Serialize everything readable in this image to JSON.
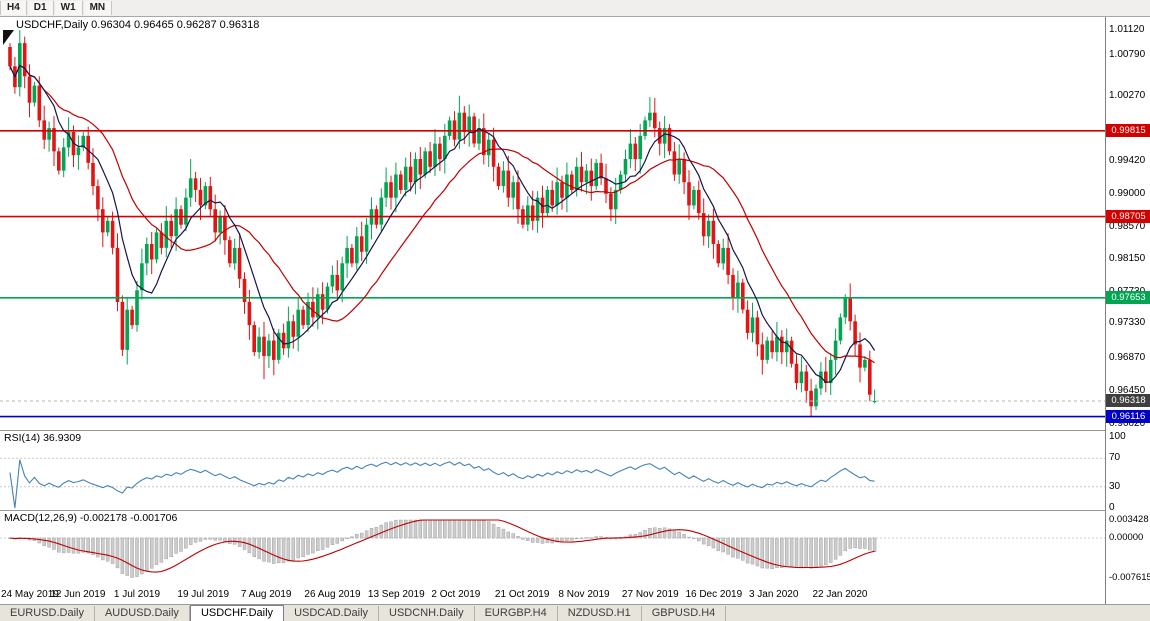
{
  "toolbar": {
    "periods": [
      "H4",
      "D1",
      "W1",
      "MN"
    ]
  },
  "chart": {
    "title": "USDCHF,Daily  0.96304 0.96465 0.96287 0.96318"
  },
  "price_axis": {
    "ticks": [
      "1.01120",
      "1.00790",
      "1.00270",
      "0.99420",
      "0.99000",
      "0.98570",
      "0.98150",
      "0.97730",
      "0.97330",
      "0.96870",
      "0.96450",
      "0.96020"
    ]
  },
  "levels": [
    {
      "label": "0.99815",
      "value": 0.99815,
      "color": "#d40000"
    },
    {
      "label": "0.98705",
      "value": 0.98705,
      "color": "#d40000"
    },
    {
      "label": "0.97653",
      "value": 0.97653,
      "color": "#00a651"
    },
    {
      "label": "0.96116",
      "value": 0.96116,
      "color": "#0000c8"
    }
  ],
  "current_price": {
    "label": "0.96318",
    "value": 0.96318,
    "badge_color": "#3f3f3f"
  },
  "rsi": {
    "label": "RSI(14) 36.9309",
    "value": 36.9309,
    "axis": [
      "100",
      "70",
      "30",
      "0"
    ],
    "line_color": "#4682b4",
    "level_lines": [
      70,
      30
    ]
  },
  "macd": {
    "label": "MACD(12,26,9) -0.002178 -0.001706",
    "axis": [
      "0.003428",
      "0.00000",
      "-0.007615"
    ],
    "hist_color": "#cccccc",
    "signal_color": "#c00000"
  },
  "date_axis": {
    "labels": [
      "24 May 2019",
      "12 Jun 2019",
      "1 Jul 2019",
      "19 Jul 2019",
      "7 Aug 2019",
      "26 Aug 2019",
      "13 Sep 2019",
      "2 Oct 2019",
      "21 Oct 2019",
      "8 Nov 2019",
      "27 Nov 2019",
      "16 Dec 2019",
      "3 Jan 2020",
      "22 Jan 2020"
    ]
  },
  "tabs": [
    {
      "label": "EURUSD.Daily",
      "active": false
    },
    {
      "label": "AUDUSD.Daily",
      "active": false
    },
    {
      "label": "USDCHF.Daily",
      "active": true
    },
    {
      "label": "USDCAD.Daily",
      "active": false
    },
    {
      "label": "USDCNH.Daily",
      "active": false
    },
    {
      "label": "EURGBP.H4",
      "active": false
    },
    {
      "label": "NZDUSD.H1",
      "active": false
    },
    {
      "label": "GBPUSD.H4",
      "active": false
    }
  ],
  "chart_data": {
    "type": "candlestick",
    "symbol": "USDCHF",
    "timeframe": "Daily",
    "current_ohlc": {
      "open": 0.96304,
      "high": 0.96465,
      "low": 0.96287,
      "close": 0.96318
    },
    "y_axis_range": [
      0.9602,
      1.0112
    ],
    "bull_color": "#00a651",
    "bear_color": "#e01515",
    "ma_colors": [
      "#15154a",
      "#c00000"
    ],
    "rsi_value": 36.9309,
    "macd_value": -0.002178,
    "macd_signal_value": -0.001706,
    "closes": [
      1.0065,
      1.0038,
      1.0095,
      1.0052,
      1.0018,
      1.004,
      0.9995,
      0.997,
      0.9985,
      0.9955,
      0.993,
      0.996,
      0.998,
      0.995,
      0.996,
      0.9975,
      0.994,
      0.991,
      0.988,
      0.985,
      0.9865,
      0.983,
      0.976,
      0.9698,
      0.975,
      0.973,
      0.9775,
      0.981,
      0.9835,
      0.9815,
      0.985,
      0.983,
      0.9865,
      0.9845,
      0.988,
      0.986,
      0.9895,
      0.992,
      0.9905,
      0.9885,
      0.991,
      0.988,
      0.985,
      0.987,
      0.984,
      0.981,
      0.983,
      0.979,
      0.976,
      0.973,
      0.9695,
      0.9715,
      0.969,
      0.971,
      0.9685,
      0.972,
      0.97,
      0.9735,
      0.9715,
      0.975,
      0.973,
      0.976,
      0.974,
      0.977,
      0.975,
      0.978,
      0.9795,
      0.9775,
      0.981,
      0.983,
      0.981,
      0.9845,
      0.9825,
      0.986,
      0.988,
      0.986,
      0.9895,
      0.9915,
      0.9895,
      0.9925,
      0.9905,
      0.9935,
      0.9915,
      0.9945,
      0.9925,
      0.9955,
      0.9935,
      0.9965,
      0.9945,
      0.9975,
      0.9995,
      0.997,
      1.0005,
      0.998,
      1.0,
      0.9965,
      0.9985,
      0.995,
      0.997,
      0.9935,
      0.991,
      0.993,
      0.9895,
      0.9915,
      0.988,
      0.986,
      0.9885,
      0.9865,
      0.9895,
      0.9875,
      0.9905,
      0.9885,
      0.9915,
      0.9895,
      0.9925,
      0.9905,
      0.9935,
      0.9915,
      0.993,
      0.991,
      0.994,
      0.992,
      0.99,
      0.988,
      0.9905,
      0.9925,
      0.9945,
      0.9965,
      0.9945,
      0.9975,
      0.9995,
      1.0005,
      0.9985,
      0.9965,
      0.9985,
      0.9955,
      0.9925,
      0.9945,
      0.9915,
      0.9885,
      0.9905,
      0.9875,
      0.9845,
      0.9865,
      0.9835,
      0.981,
      0.983,
      0.9795,
      0.9765,
      0.9785,
      0.975,
      0.972,
      0.974,
      0.9705,
      0.9685,
      0.971,
      0.9695,
      0.9715,
      0.9695,
      0.971,
      0.968,
      0.9655,
      0.967,
      0.9645,
      0.9625,
      0.9648,
      0.967,
      0.9655,
      0.9685,
      0.971,
      0.974,
      0.9765,
      0.9735,
      0.9705,
      0.9675,
      0.9685,
      0.964,
      0.96318
    ],
    "overrides": {
      "0": {
        "o": 1.009
      },
      "2": {
        "h": 1.0112
      },
      "23": {
        "l": 0.969
      },
      "37": {
        "h": 0.9945
      },
      "52": {
        "l": 0.966
      },
      "54": {
        "l": 0.9665
      },
      "92": {
        "h": 1.0027
      },
      "131": {
        "h": 1.0025
      },
      "164": {
        "l": 0.9612
      },
      "171": {
        "h": 0.977
      },
      "177": {
        "o": 0.96304,
        "h": 0.96465,
        "l": 0.96287
      }
    }
  }
}
